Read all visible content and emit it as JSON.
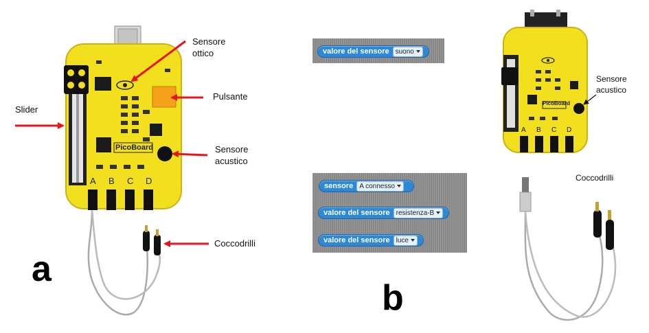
{
  "panel_a": {
    "letter": "a",
    "labels": {
      "optical_sensor_1": "Sensore",
      "optical_sensor_2": "ottico",
      "button": "Pulsante",
      "slider": "Slider",
      "acoustic_sensor_1": "Sensore",
      "acoustic_sensor_2": "acustico",
      "crocodiles": "Coccodrilli"
    },
    "board": {
      "logo": "PicoBoard",
      "ports": [
        "A",
        "B",
        "C",
        "D"
      ]
    }
  },
  "panel_b": {
    "letter": "b",
    "blocks": [
      {
        "text": "valore del sensore",
        "value": "suono"
      },
      {
        "text": "sensore",
        "value": "A connesso"
      },
      {
        "text": "valore del sensore",
        "value": "resistenza-B"
      },
      {
        "text": "valore del sensore",
        "value": "luce"
      }
    ]
  },
  "panel_c": {
    "labels": {
      "acoustic_sensor_1": "Sensore",
      "acoustic_sensor_2": "acustico",
      "crocodiles": "Coccodrilli"
    },
    "board": {
      "logo": "PicoBoard",
      "ports": [
        "A",
        "B",
        "C",
        "D"
      ]
    }
  },
  "colors": {
    "board_yellow": "#f2df1d",
    "board_border": "#c9b412",
    "arrow_red": "#e8141c",
    "block_blue": "#2d88d6",
    "scratch_gray": "#8f8f8f"
  }
}
